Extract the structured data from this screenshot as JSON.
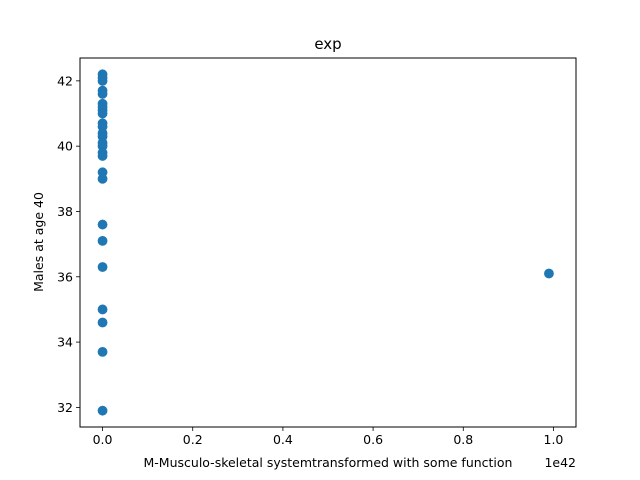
{
  "chart_data": {
    "type": "scatter",
    "title": "exp",
    "xlabel": "M-Musculo-skeletal systemtransformed with some function",
    "ylabel": "Males at age 40",
    "x_offset_label": "1e42",
    "xlim": [
      -0.05,
      1.05
    ],
    "ylim": [
      31.4,
      42.7
    ],
    "x_ticks": [
      0.0,
      0.2,
      0.4,
      0.6,
      0.8,
      1.0
    ],
    "x_tick_labels": [
      "0.0",
      "0.2",
      "0.4",
      "0.6",
      "0.8",
      "1.0"
    ],
    "y_ticks": [
      32,
      34,
      36,
      38,
      40,
      42
    ],
    "y_tick_labels": [
      "32",
      "34",
      "36",
      "38",
      "40",
      "42"
    ],
    "grid": false,
    "marker_color": "#1f77b4",
    "points": [
      {
        "x": 0.0,
        "y": 42.2
      },
      {
        "x": 0.0,
        "y": 42.1
      },
      {
        "x": 0.0,
        "y": 42.0
      },
      {
        "x": 0.0,
        "y": 41.7
      },
      {
        "x": 0.0,
        "y": 41.6
      },
      {
        "x": 0.0,
        "y": 41.3
      },
      {
        "x": 0.0,
        "y": 41.2
      },
      {
        "x": 0.0,
        "y": 41.1
      },
      {
        "x": 0.0,
        "y": 41.0
      },
      {
        "x": 0.0,
        "y": 40.7
      },
      {
        "x": 0.0,
        "y": 40.6
      },
      {
        "x": 0.0,
        "y": 40.4
      },
      {
        "x": 0.0,
        "y": 40.3
      },
      {
        "x": 0.0,
        "y": 40.1
      },
      {
        "x": 0.0,
        "y": 40.0
      },
      {
        "x": 0.0,
        "y": 39.8
      },
      {
        "x": 0.0,
        "y": 39.7
      },
      {
        "x": 0.0,
        "y": 39.2
      },
      {
        "x": 0.0,
        "y": 39.0
      },
      {
        "x": 0.0,
        "y": 37.6
      },
      {
        "x": 0.0,
        "y": 37.1
      },
      {
        "x": 0.0,
        "y": 36.3
      },
      {
        "x": 0.0,
        "y": 35.0
      },
      {
        "x": 0.0,
        "y": 34.6
      },
      {
        "x": 0.0,
        "y": 33.7
      },
      {
        "x": 0.0,
        "y": 31.9
      },
      {
        "x": 0.99,
        "y": 36.1
      }
    ]
  }
}
